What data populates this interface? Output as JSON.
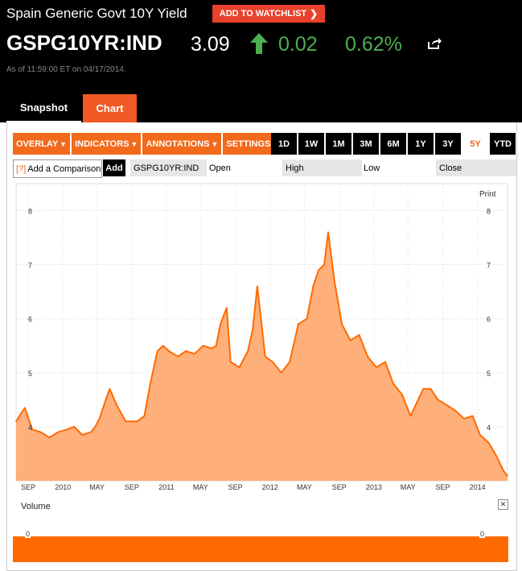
{
  "header": {
    "title": "Spain Generic Govt 10Y Yield",
    "watchlist_label": "ADD TO WATCHLIST",
    "ticker": "GSPG10YR:IND",
    "price": "3.09",
    "change": "0.02",
    "change_pct": "0.62%",
    "as_of": "As of 11:59:00 ET on 04/17/2014.",
    "up_color": "#4caf50"
  },
  "tabs": [
    {
      "label": "Snapshot"
    },
    {
      "label": "Chart"
    }
  ],
  "toolbar": {
    "menus": [
      {
        "label": "OVERLAY"
      },
      {
        "label": "INDICATORS"
      },
      {
        "label": "ANNOTATIONS"
      },
      {
        "label": "SETTINGS"
      }
    ],
    "ranges": [
      {
        "label": "1D"
      },
      {
        "label": "1W"
      },
      {
        "label": "1M"
      },
      {
        "label": "3M"
      },
      {
        "label": "6M"
      },
      {
        "label": "1Y"
      },
      {
        "label": "3Y"
      },
      {
        "label": "5Y"
      },
      {
        "label": "YTD"
      }
    ],
    "active_range": "5Y"
  },
  "compare": {
    "prefix": "[?]",
    "placeholder": "Add a Comparison",
    "add_label": "Add",
    "symbol": "GSPG10YR:IND",
    "open_label": "Open",
    "high_label": "High",
    "low_label": "Low",
    "close_label": "Close"
  },
  "chart_controls": {
    "print_label": "Print"
  },
  "volume": {
    "label": "Volume",
    "close_icon": "close-icon",
    "tick_label": "0"
  },
  "chart_data": {
    "type": "area",
    "ylim": [
      3.0,
      8.5
    ],
    "yticks": [
      4,
      5,
      6,
      7,
      8
    ],
    "xlim": [
      "2009-07-20",
      "2014-04-17"
    ],
    "xticks": [
      {
        "label": "SEP",
        "date": "2009-09-01"
      },
      {
        "label": "2010",
        "date": "2010-01-01"
      },
      {
        "label": "MAY",
        "date": "2010-05-01"
      },
      {
        "label": "SEP",
        "date": "2010-09-01"
      },
      {
        "label": "2011",
        "date": "2011-01-01"
      },
      {
        "label": "MAY",
        "date": "2011-05-01"
      },
      {
        "label": "SEP",
        "date": "2011-09-01"
      },
      {
        "label": "2012",
        "date": "2012-01-01"
      },
      {
        "label": "MAY",
        "date": "2012-05-01"
      },
      {
        "label": "SEP",
        "date": "2012-09-01"
      },
      {
        "label": "2013",
        "date": "2013-01-01"
      },
      {
        "label": "MAY",
        "date": "2013-05-01"
      },
      {
        "label": "SEP",
        "date": "2013-09-01"
      },
      {
        "label": "2014",
        "date": "2014-01-01"
      }
    ],
    "x": [
      "2009-07-20",
      "2009-08-01",
      "2009-08-20",
      "2009-09-15",
      "2009-10-15",
      "2009-11-15",
      "2009-12-15",
      "2010-01-15",
      "2010-02-10",
      "2010-03-10",
      "2010-04-10",
      "2010-04-25",
      "2010-05-10",
      "2010-06-01",
      "2010-06-15",
      "2010-07-10",
      "2010-08-10",
      "2010-08-25",
      "2010-09-20",
      "2010-10-15",
      "2010-11-05",
      "2010-11-30",
      "2010-12-20",
      "2011-01-10",
      "2011-02-10",
      "2011-03-10",
      "2011-04-10",
      "2011-05-10",
      "2011-06-10",
      "2011-06-25",
      "2011-07-10",
      "2011-08-01",
      "2011-08-15",
      "2011-09-15",
      "2011-10-15",
      "2011-11-01",
      "2011-11-17",
      "2011-12-15",
      "2012-01-10",
      "2012-02-10",
      "2012-03-10",
      "2012-04-10",
      "2012-05-10",
      "2012-06-01",
      "2012-06-20",
      "2012-07-10",
      "2012-07-24",
      "2012-08-15",
      "2012-09-10",
      "2012-10-10",
      "2012-11-10",
      "2012-12-10",
      "2013-01-10",
      "2013-02-10",
      "2013-03-10",
      "2013-04-10",
      "2013-05-10",
      "2013-06-24",
      "2013-07-20",
      "2013-08-15",
      "2013-09-15",
      "2013-10-15",
      "2013-11-15",
      "2013-12-15",
      "2014-01-10",
      "2014-02-10",
      "2014-03-10",
      "2014-04-01",
      "2014-04-17"
    ],
    "values": [
      4.1,
      4.2,
      4.35,
      3.95,
      3.9,
      3.8,
      3.9,
      3.95,
      4.0,
      3.85,
      3.9,
      4.0,
      4.15,
      4.5,
      4.7,
      4.4,
      4.1,
      4.1,
      4.1,
      4.2,
      4.8,
      5.4,
      5.5,
      5.4,
      5.3,
      5.4,
      5.35,
      5.5,
      5.45,
      5.5,
      5.9,
      6.2,
      5.2,
      5.1,
      5.4,
      5.8,
      6.6,
      5.3,
      5.2,
      5.0,
      5.2,
      5.9,
      6.0,
      6.6,
      6.9,
      7.0,
      7.6,
      6.7,
      5.9,
      5.6,
      5.7,
      5.3,
      5.1,
      5.2,
      4.8,
      4.6,
      4.2,
      4.7,
      4.7,
      4.5,
      4.4,
      4.3,
      4.15,
      4.2,
      3.85,
      3.7,
      3.45,
      3.2,
      3.09
    ],
    "line_color": "#ff6a00",
    "fill_color": "#ffaf7a",
    "grid": true
  }
}
